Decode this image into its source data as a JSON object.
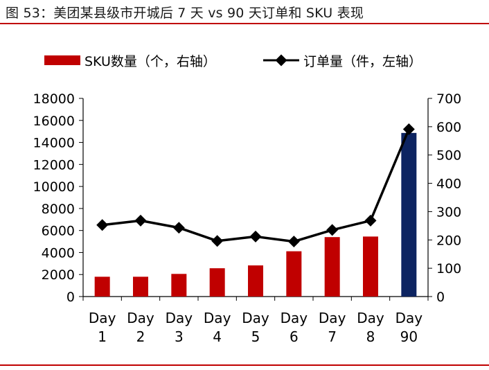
{
  "title": "图 53：美团某县级市开城后 7 天 vs 90 天订单和 SKU 表现",
  "colors": {
    "accent": "#c00000",
    "bar": "#c00000",
    "bar_highlight": "#0d2461",
    "line": "#000000"
  },
  "chart_data": {
    "type": "bar+line",
    "categories": [
      [
        "Day",
        "1"
      ],
      [
        "Day",
        "2"
      ],
      [
        "Day",
        "3"
      ],
      [
        "Day",
        "4"
      ],
      [
        "Day",
        "5"
      ],
      [
        "Day",
        "6"
      ],
      [
        "Day",
        "7"
      ],
      [
        "Day",
        "8"
      ],
      [
        "Day",
        "90"
      ]
    ],
    "series": [
      {
        "name": "SKU数量（个，右轴）",
        "type": "bar",
        "axis": "right",
        "values": [
          70,
          70,
          80,
          100,
          110,
          160,
          210,
          212,
          578
        ],
        "highlight_index": 8
      },
      {
        "name": "订单量（件，左轴）",
        "type": "line",
        "axis": "left",
        "values": [
          6500,
          6900,
          6250,
          5050,
          5450,
          5000,
          6050,
          6900,
          15200
        ]
      }
    ],
    "left_axis": {
      "ylim": [
        0,
        18000
      ],
      "ticks": [
        "0",
        "2000",
        "4000",
        "6000",
        "8000",
        "10000",
        "12000",
        "14000",
        "16000",
        "18000"
      ]
    },
    "right_axis": {
      "ylim": [
        0,
        700
      ],
      "ticks": [
        "0",
        "100",
        "200",
        "300",
        "400",
        "500",
        "600",
        "700"
      ]
    },
    "legend_placement": "top",
    "grid": false
  }
}
